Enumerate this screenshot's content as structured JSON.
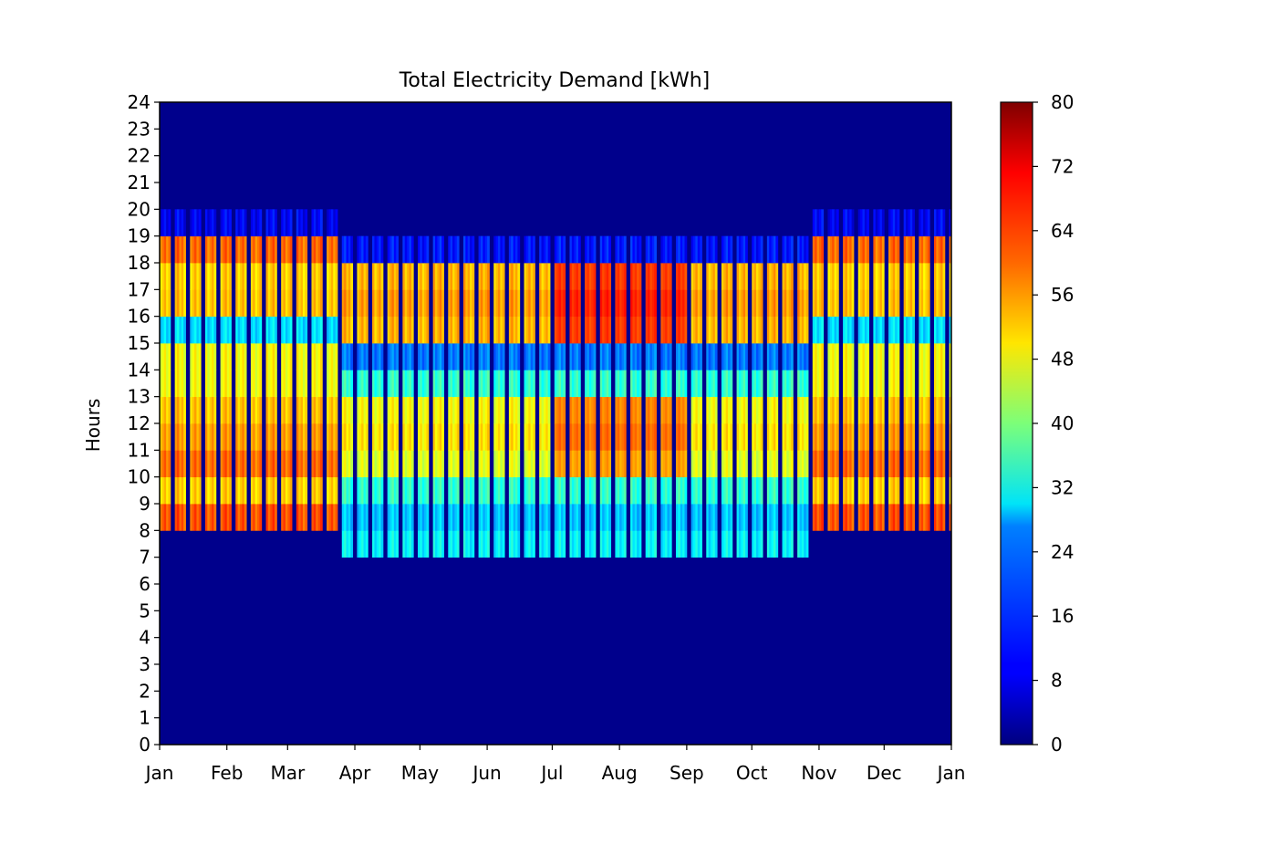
{
  "chart_data": {
    "type": "heatmap",
    "title": "Total Electricity Demand [kWh]",
    "xlabel": "",
    "ylabel": "Hours",
    "x_tick_labels": [
      "Jan",
      "Feb",
      "Mar",
      "Apr",
      "May",
      "Jun",
      "Jul",
      "Aug",
      "Sep",
      "Oct",
      "Nov",
      "Dec",
      "Jan"
    ],
    "y_tick_labels": [
      "0",
      "1",
      "2",
      "3",
      "4",
      "5",
      "6",
      "7",
      "8",
      "9",
      "10",
      "11",
      "12",
      "13",
      "14",
      "15",
      "16",
      "17",
      "18",
      "19",
      "20",
      "21",
      "22",
      "23",
      "24"
    ],
    "colorbar": {
      "colormap": "jet",
      "range": [
        0,
        80
      ],
      "tick_labels": [
        "0",
        "8",
        "16",
        "24",
        "32",
        "40",
        "48",
        "56",
        "64",
        "72",
        "80"
      ]
    },
    "xlim_days": [
      0,
      365
    ],
    "ylim_hours": [
      0,
      24
    ],
    "seasons": [
      {
        "period": "Jan 1 - Mar 24",
        "day_range": [
          0,
          83
        ],
        "working_hours": [
          8,
          20
        ]
      },
      {
        "period": "Mar 25 - Oct 28",
        "day_range": [
          83,
          301
        ],
        "working_hours": [
          7,
          19
        ]
      },
      {
        "period": "Oct 29 - Dec 31",
        "day_range": [
          301,
          365
        ],
        "working_hours": [
          8,
          20
        ]
      }
    ],
    "week_pattern": {
      "working_days_per_week": 5,
      "weekend_value": 0
    },
    "winter_hourly_profile": {
      "8": 64,
      "9": 54,
      "10": 62,
      "11": 58,
      "12": 55,
      "13": 50,
      "14": 50,
      "15": 28,
      "16": 55,
      "17": 54,
      "18": 62,
      "19": 10
    },
    "summer_hourly_profile": {
      "7": 30,
      "8": 26,
      "9": 34,
      "10": 48,
      "11": 52,
      "12": 50,
      "13": 34,
      "14": 20,
      "15": 56,
      "16": 58,
      "17": 56,
      "18": 12
    },
    "summer_peak_months": [
      "Jul",
      "Aug"
    ],
    "summer_peak_value": 68,
    "off_hours_value": 1
  }
}
